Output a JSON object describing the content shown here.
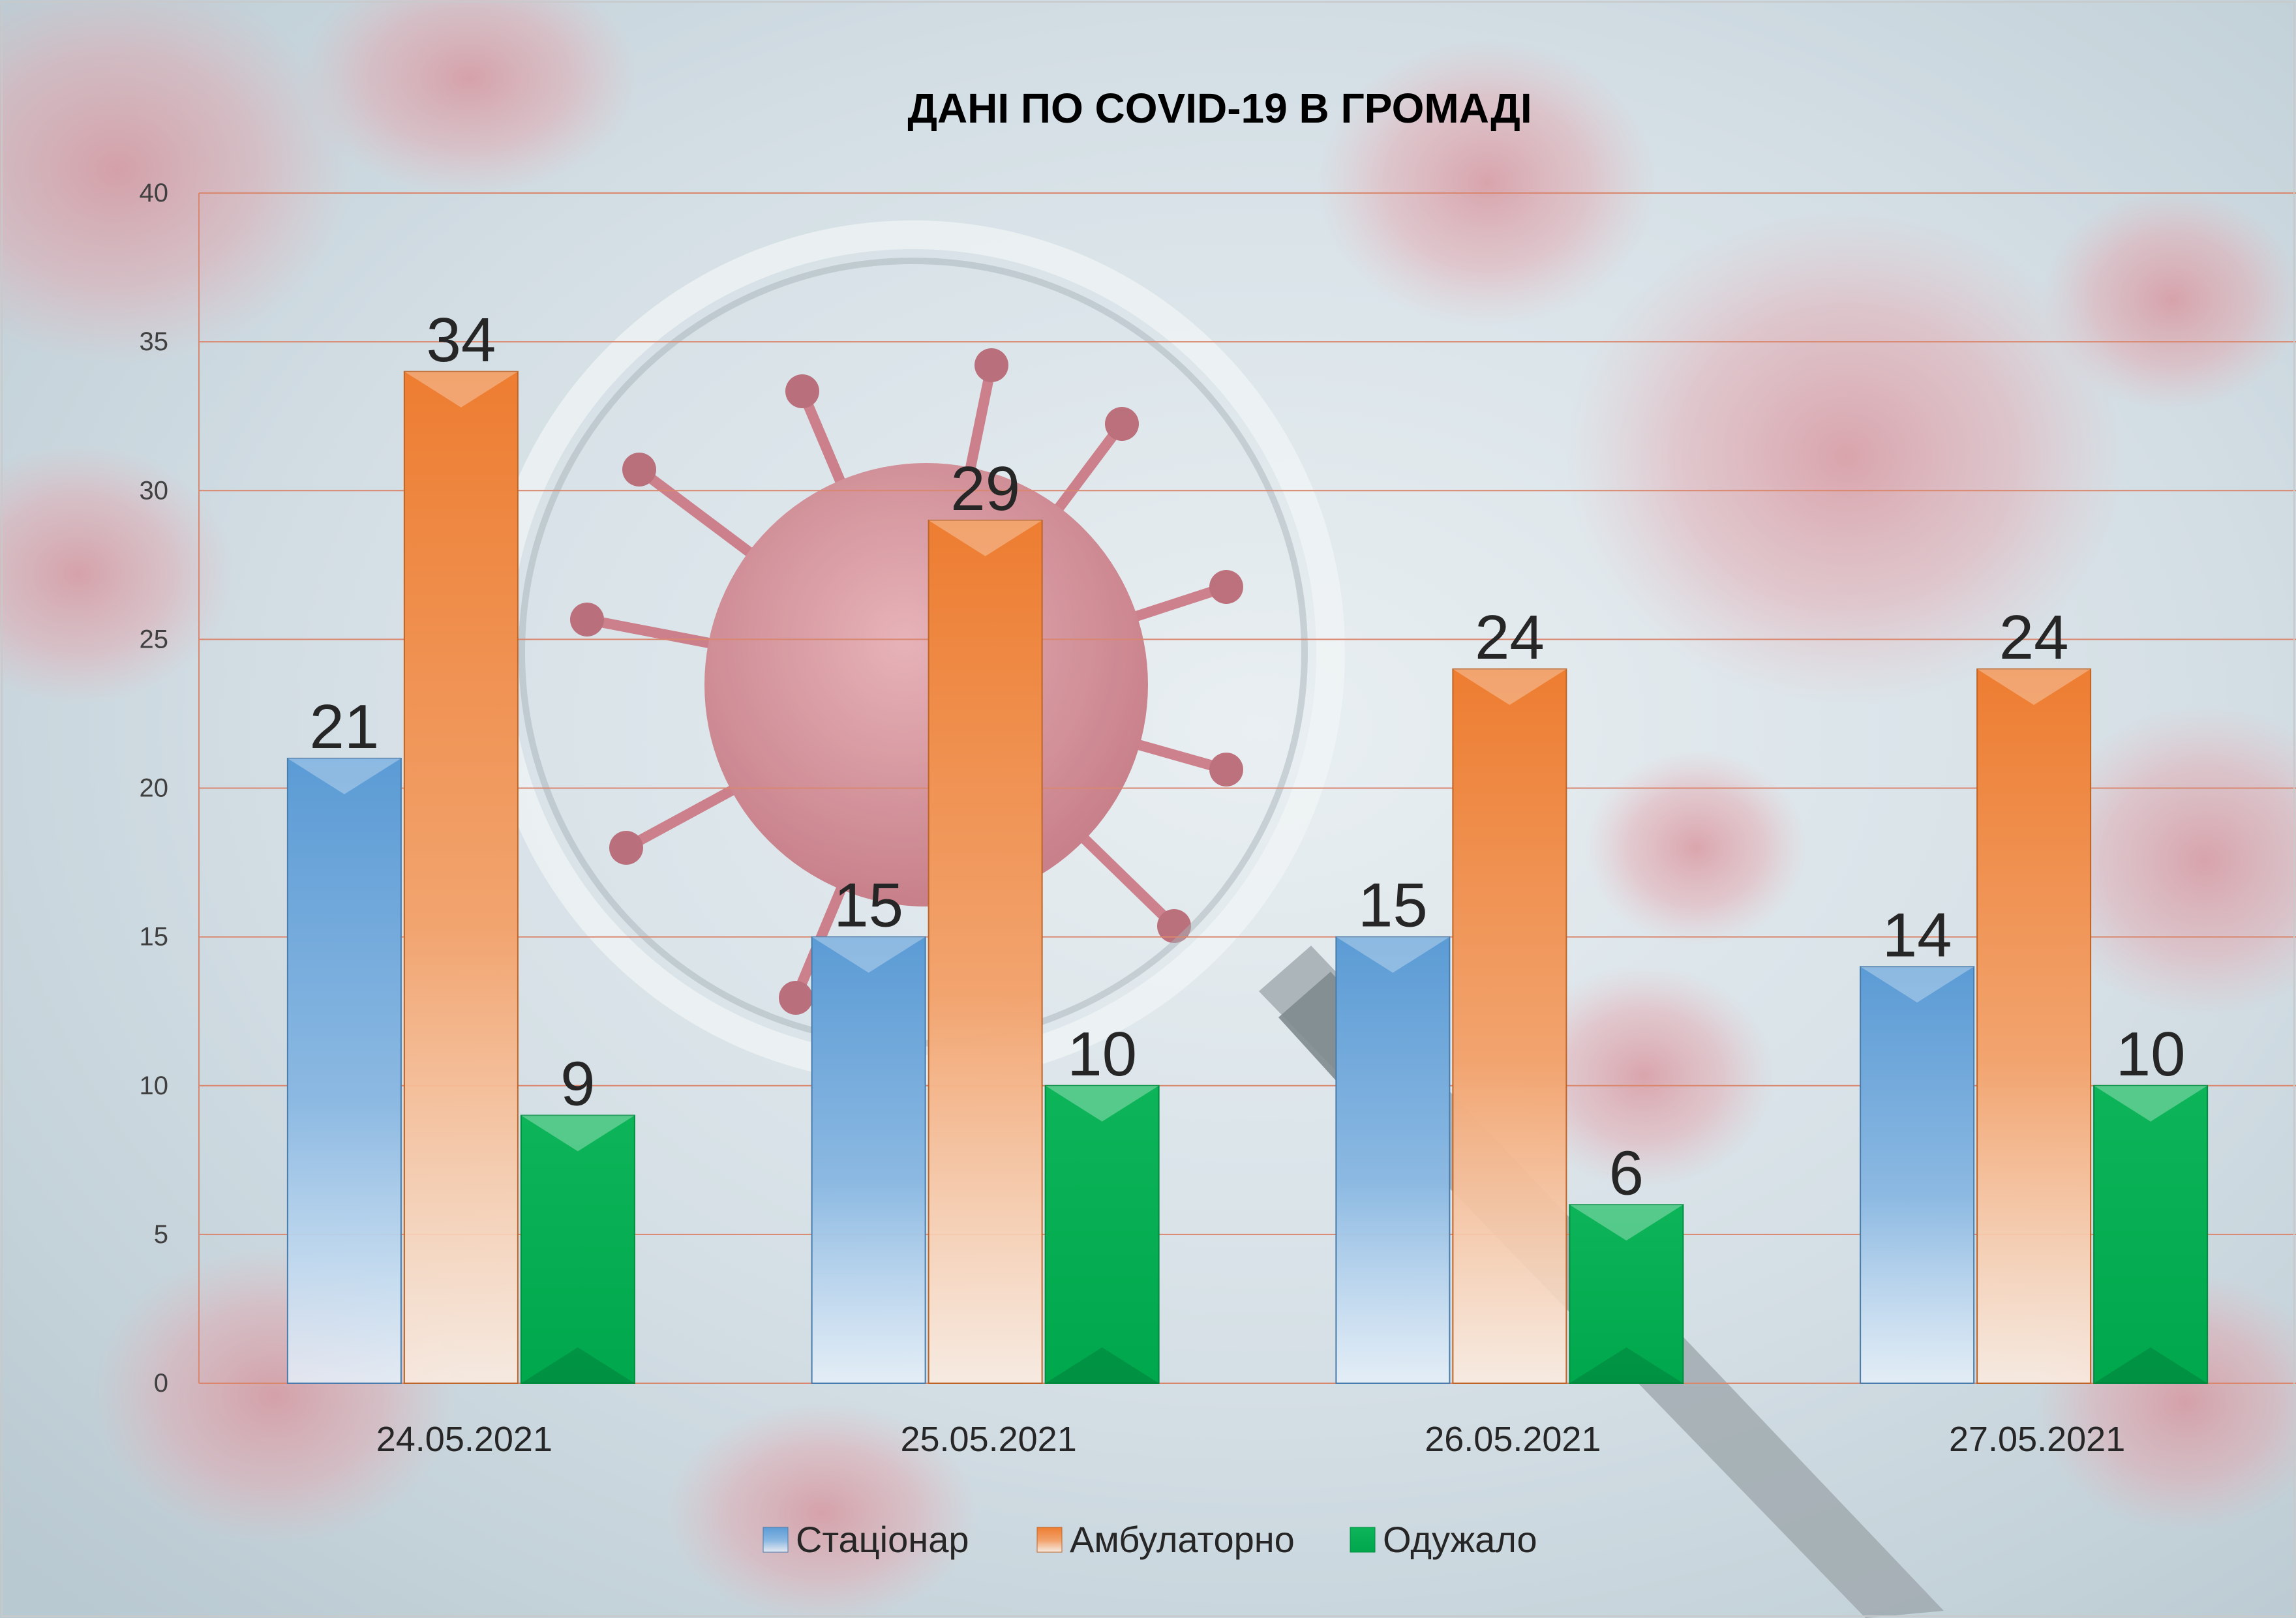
{
  "chart_data": {
    "type": "bar",
    "title": "ДАНІ ПО COVID-19 В ГРОМАДІ",
    "categories": [
      "24.05.2021",
      "25.05.2021",
      "26.05.2021",
      "27.05.2021"
    ],
    "series": [
      {
        "name": "Стаціонар",
        "values": [
          21,
          15,
          15,
          14
        ],
        "color": "#5b9bd5"
      },
      {
        "name": "Амбулаторно",
        "values": [
          34,
          29,
          24,
          24
        ],
        "color": "#ed7d31"
      },
      {
        "name": "Одужало",
        "values": [
          9,
          10,
          6,
          10
        ],
        "color": "#00b050"
      }
    ],
    "ylim": [
      0,
      40
    ],
    "yticks": [
      0,
      5,
      10,
      15,
      20,
      25,
      30,
      35,
      40
    ],
    "grid": true,
    "legend_position": "bottom",
    "data_labels": true
  }
}
